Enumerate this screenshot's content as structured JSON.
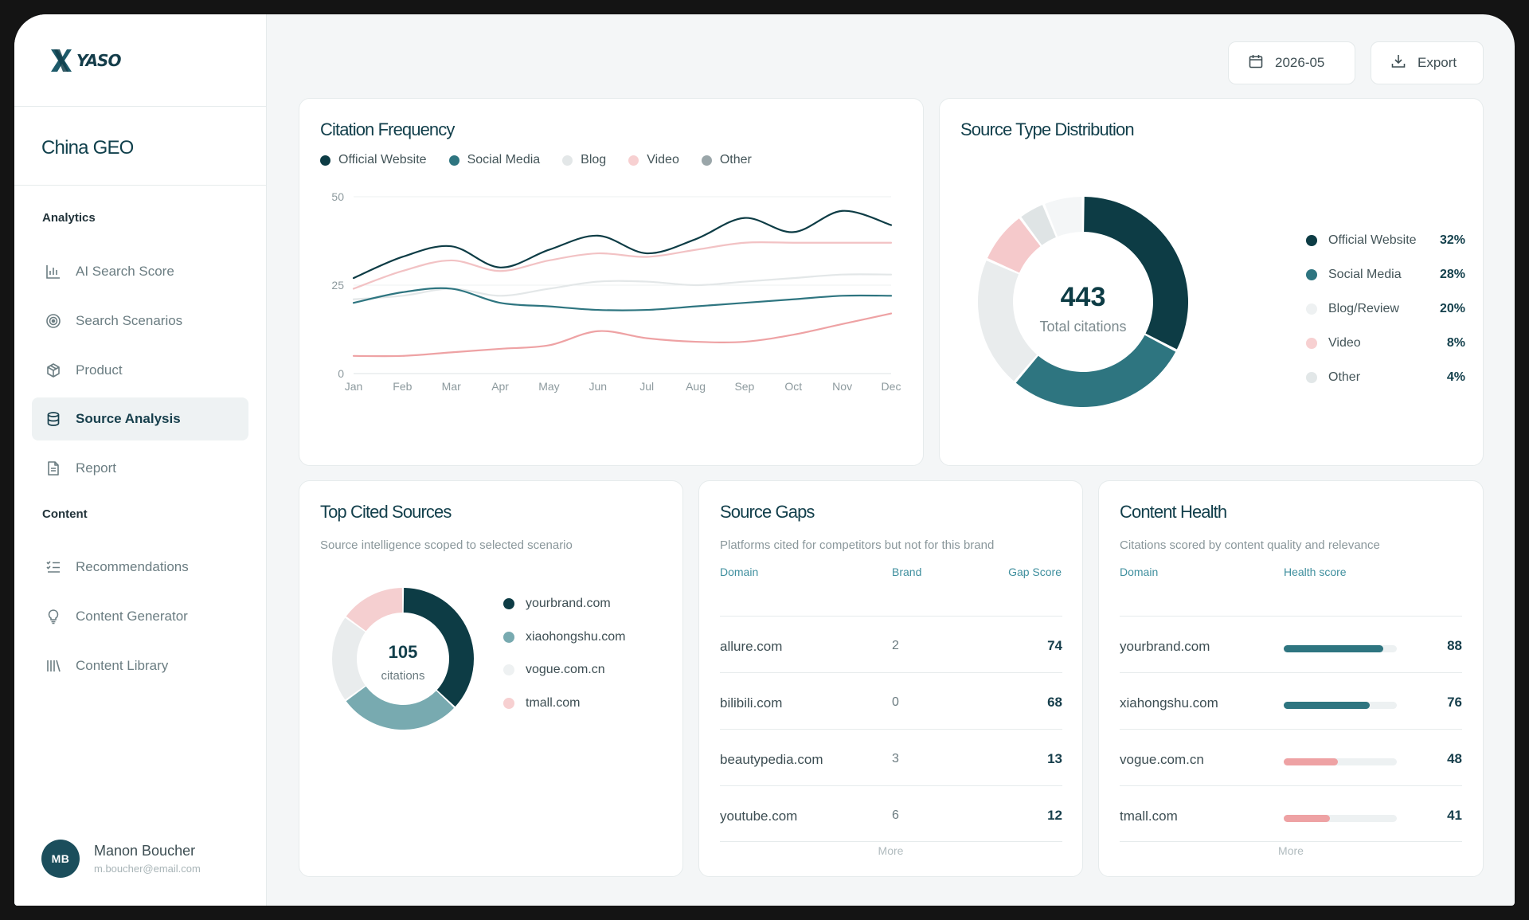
{
  "app": {
    "logo_text": "YASO",
    "org_name": "China GEO"
  },
  "sidebar": {
    "section_analytics": "Analytics",
    "section_content": "Content",
    "analytics_items": [
      {
        "label": "AI Search Score",
        "icon": "bar-chart-icon"
      },
      {
        "label": "Search Scenarios",
        "icon": "target-icon"
      },
      {
        "label": "Product",
        "icon": "box-icon"
      },
      {
        "label": "Source Analysis",
        "icon": "database-icon",
        "active": true
      },
      {
        "label": "Report",
        "icon": "document-icon"
      }
    ],
    "content_items": [
      {
        "label": "Recommendations",
        "icon": "checklist-icon"
      },
      {
        "label": "Content Generator",
        "icon": "lightbulb-icon"
      },
      {
        "label": "Content Library",
        "icon": "library-icon"
      }
    ]
  },
  "user": {
    "initials": "MB",
    "name": "Manon Boucher",
    "email": "m.boucher@email.com"
  },
  "toolbar": {
    "date": "2026-05",
    "export_label": "Export"
  },
  "colors": {
    "official": "#0d3c45",
    "social": "#2e7580",
    "blog": "#e3e7e8",
    "video": "#f2c2c4",
    "other": "#d2d9da",
    "accent_teal": "#2e7580",
    "accent_pink": "#eea2a4"
  },
  "citation_frequency": {
    "title": "Citation Frequency",
    "legend": [
      "Official Website",
      "Social Media",
      "Blog",
      "Video",
      "Other"
    ]
  },
  "chart_data": [
    {
      "type": "line",
      "title": "Citation Frequency",
      "x": [
        "Jan",
        "Feb",
        "Mar",
        "Apr",
        "May",
        "Jun",
        "Jul",
        "Aug",
        "Sep",
        "Oct",
        "Nov",
        "Dec"
      ],
      "yticks": [
        0,
        25,
        50
      ],
      "ylim": [
        0,
        50
      ],
      "series": [
        {
          "name": "Official Website",
          "color": "#0d3c45",
          "values": [
            27,
            33,
            36,
            30,
            35,
            39,
            34,
            38,
            44,
            40,
            46,
            42
          ]
        },
        {
          "name": "Social Media",
          "color": "#2e7580",
          "values": [
            20,
            23,
            24,
            20,
            19,
            18,
            18,
            19,
            20,
            21,
            22,
            22
          ]
        },
        {
          "name": "Blog",
          "color": "#e3e7e8",
          "values": [
            21,
            22,
            24,
            22,
            24,
            26,
            26,
            25,
            26,
            27,
            28,
            28
          ]
        },
        {
          "name": "Video",
          "color": "#f2c2c4",
          "values": [
            24,
            29,
            32,
            29,
            32,
            34,
            33,
            35,
            37,
            37,
            37,
            37
          ]
        },
        {
          "name": "Other",
          "color": "#eea2a4",
          "values": [
            5,
            5,
            6,
            7,
            8,
            12,
            10,
            9,
            9,
            11,
            14,
            17
          ]
        }
      ]
    },
    {
      "type": "pie",
      "title": "Source Type Distribution",
      "center_value": "443",
      "center_label": "Total citations",
      "categories": [
        "Official Website",
        "Social Media",
        "Blog/Review",
        "Video",
        "Other"
      ],
      "values": [
        32,
        28,
        20,
        8,
        4
      ],
      "value_labels": [
        "32%",
        "28%",
        "20%",
        "8%",
        "4%"
      ],
      "colors": [
        "#0d3c45",
        "#2e7580",
        "#e9eced",
        "#f5c9cb",
        "#dfe4e5"
      ],
      "extra_segment": {
        "value": 6,
        "color": "#f4f6f7"
      }
    },
    {
      "type": "pie",
      "title": "Top Cited Sources",
      "center_value": "105",
      "center_label": "citations",
      "categories": [
        "yourbrand.com",
        "xiaohongshu.com",
        "vogue.com.cn",
        "tmall.com"
      ],
      "values": [
        37,
        28,
        20,
        15
      ],
      "colors": [
        "#0d3c45",
        "#78aab0",
        "#e9eced",
        "#f5cfd0"
      ]
    }
  ],
  "source_distribution": {
    "title": "Source Type Distribution"
  },
  "top_sources": {
    "title": "Top Cited Sources",
    "subtitle": "Source intelligence scoped to selected scenario"
  },
  "source_gaps": {
    "title": "Source Gaps",
    "subtitle": "Platforms cited for competitors but not for this brand",
    "headers": [
      "Domain",
      "Brand",
      "Gap Score"
    ],
    "rows": [
      {
        "domain": "allure.com",
        "brand": "2",
        "score": "74"
      },
      {
        "domain": "bilibili.com",
        "brand": "0",
        "score": "68"
      },
      {
        "domain": "beautypedia.com",
        "brand": "3",
        "score": "13"
      },
      {
        "domain": "youtube.com",
        "brand": "6",
        "score": "12"
      }
    ],
    "more": "More"
  },
  "content_health": {
    "title": "Content Health",
    "subtitle": "Citations scored by content quality and relevance",
    "headers": [
      "Domain",
      "Health score"
    ],
    "rows": [
      {
        "domain": "yourbrand.com",
        "score": "88",
        "fill": 0.88,
        "color": "#2e7580"
      },
      {
        "domain": "xiahongshu.com",
        "score": "76",
        "fill": 0.76,
        "color": "#2e7580"
      },
      {
        "domain": "vogue.com.cn",
        "score": "48",
        "fill": 0.48,
        "color": "#eea2a4"
      },
      {
        "domain": "tmall.com",
        "score": "41",
        "fill": 0.41,
        "color": "#eea2a4"
      }
    ],
    "more": "More"
  }
}
